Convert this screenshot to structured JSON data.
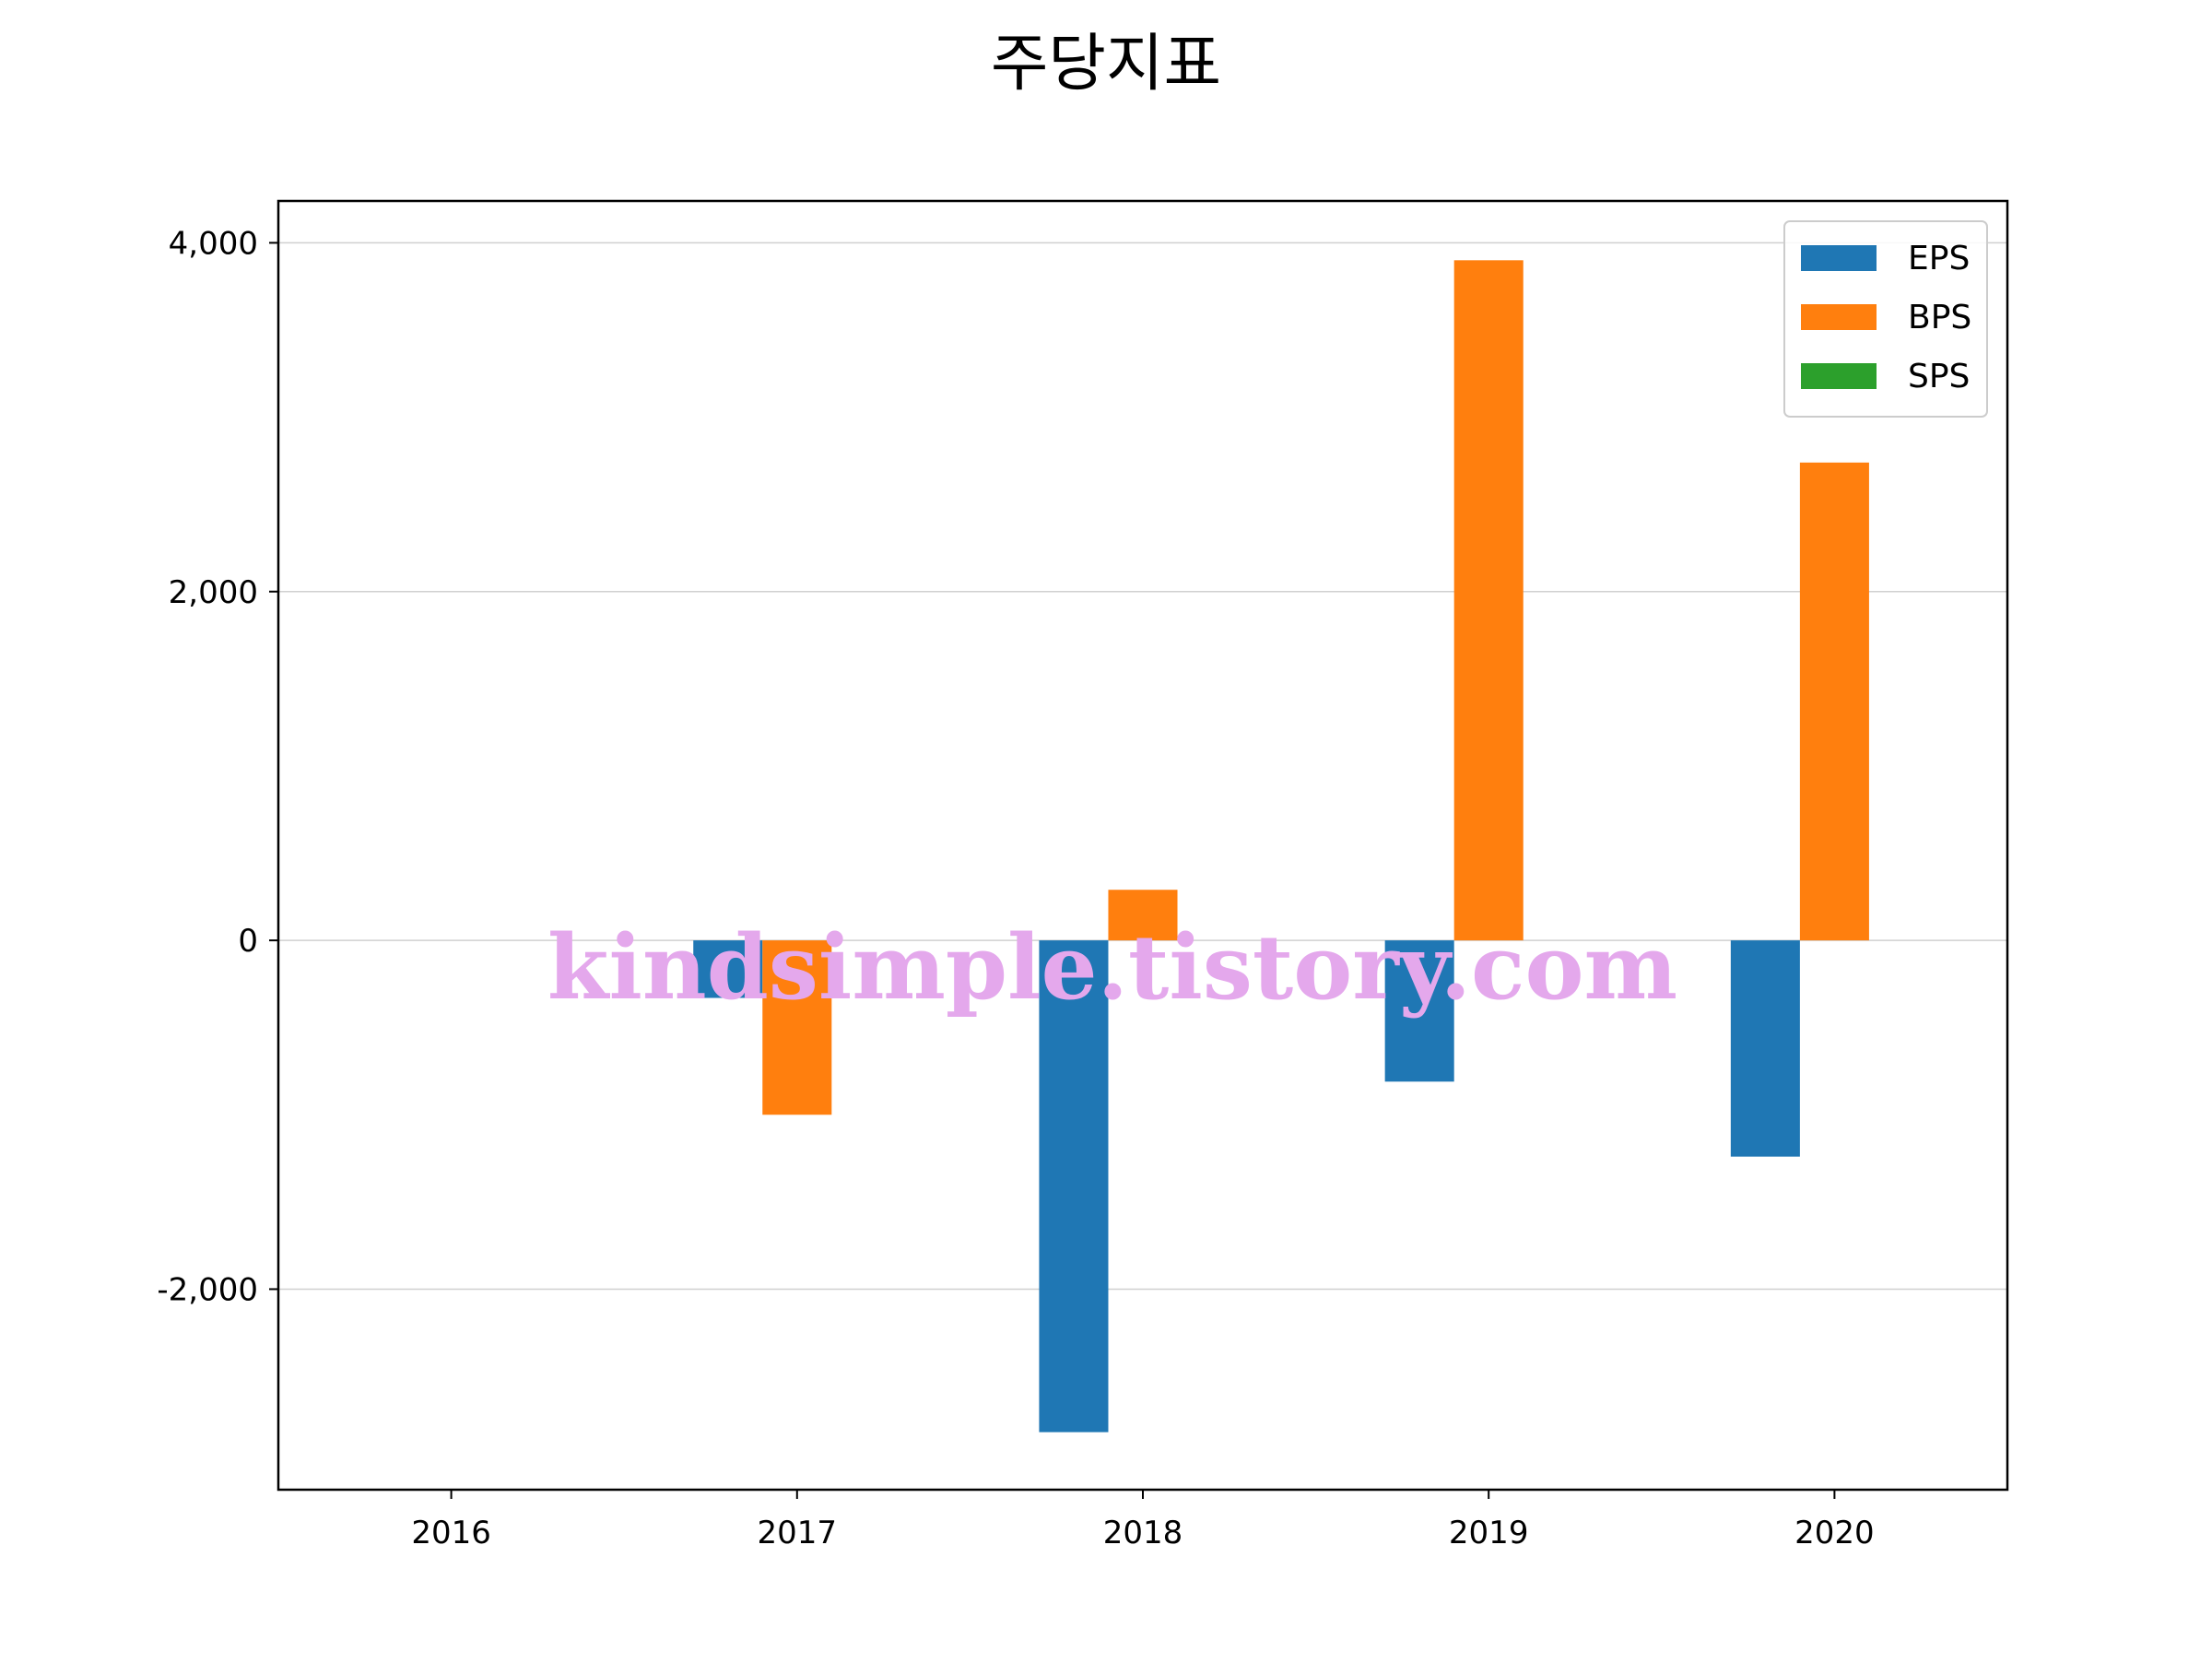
{
  "chart_data": {
    "type": "bar",
    "title": "주당지표",
    "xlabel": "",
    "ylabel": "",
    "categories": [
      "2016",
      "2017",
      "2018",
      "2019",
      "2020"
    ],
    "series": [
      {
        "name": "EPS",
        "color": "#1f77b4",
        "values": [
          null,
          -330,
          -2820,
          -810,
          -1240
        ]
      },
      {
        "name": "BPS",
        "color": "#ff7f0e",
        "values": [
          null,
          -1000,
          290,
          3900,
          2740
        ]
      },
      {
        "name": "SPS",
        "color": "#2ca02c",
        "values": [
          null,
          null,
          null,
          null,
          null
        ]
      }
    ],
    "ylim": [
      -3150,
      4240
    ],
    "yticks": [
      {
        "value": -2000,
        "label": "-2,000"
      },
      {
        "value": 0,
        "label": "0"
      },
      {
        "value": 2000,
        "label": "2,000"
      },
      {
        "value": 4000,
        "label": "4,000"
      }
    ],
    "grid": "y",
    "legend_position": "top-right"
  },
  "watermark": {
    "text": "kindsimple.tistory.com",
    "color": "#e4a8ec"
  }
}
